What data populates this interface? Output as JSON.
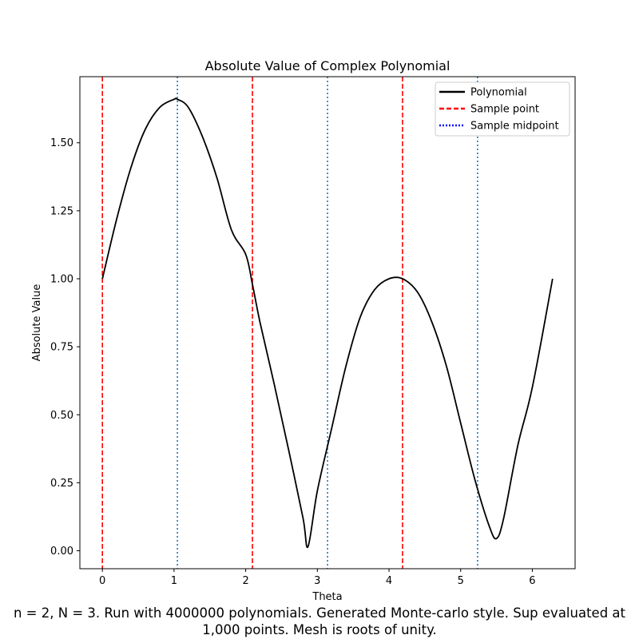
{
  "chart_data": {
    "type": "line",
    "title": "Absolute Value of Complex Polynomial",
    "xlabel": "Theta",
    "ylabel": "Absolute Value",
    "xlim": [
      -0.314,
      6.597
    ],
    "ylim": [
      -0.066,
      1.743
    ],
    "x_ticks": [
      "0",
      "1",
      "2",
      "3",
      "4",
      "5",
      "6"
    ],
    "x_tick_values": [
      0,
      1,
      2,
      3,
      4,
      5,
      6
    ],
    "y_ticks": [
      "0.00",
      "0.25",
      "0.50",
      "0.75",
      "1.00",
      "1.25",
      "1.50"
    ],
    "y_tick_values": [
      0,
      0.25,
      0.5,
      0.75,
      1.0,
      1.25,
      1.5
    ],
    "grid": false,
    "legend_position": "top-right",
    "series": [
      {
        "name": "Polynomial",
        "color": "#000000",
        "style": "solid",
        "x": [
          0,
          0.2,
          0.4,
          0.6,
          0.8,
          1.0,
          1.047,
          1.2,
          1.4,
          1.6,
          1.8,
          2.0,
          2.094,
          2.2,
          2.4,
          2.6,
          2.8,
          2.87,
          3.0,
          3.2,
          3.4,
          3.6,
          3.8,
          4.0,
          4.189,
          4.4,
          4.6,
          4.8,
          5.0,
          5.2,
          5.4,
          5.5,
          5.6,
          5.8,
          6.0,
          6.283
        ],
        "y": [
          1.0,
          1.22,
          1.41,
          1.55,
          1.63,
          1.66,
          1.66,
          1.63,
          1.52,
          1.37,
          1.18,
          1.09,
          0.98,
          0.84,
          0.61,
          0.37,
          0.12,
          0.015,
          0.22,
          0.45,
          0.68,
          0.86,
          0.96,
          1.0,
          1.0,
          0.95,
          0.84,
          0.68,
          0.47,
          0.26,
          0.09,
          0.045,
          0.12,
          0.39,
          0.6,
          1.0
        ]
      },
      {
        "name": "Sample point",
        "color": "#ff0000",
        "style": "dashed",
        "vlines": [
          0,
          2.094,
          4.189
        ]
      },
      {
        "name": "Sample midpoint",
        "color": "#1f77b4",
        "legend_color": "#0000ff",
        "style": "dotted",
        "vlines": [
          1.047,
          3.142,
          5.236
        ]
      }
    ],
    "caption": "n = 2, N = 3. Run with 4000000 polynomials. Generated Monte-carlo style. Sup evaluated at 1,000 points. Mesh is roots of unity."
  }
}
